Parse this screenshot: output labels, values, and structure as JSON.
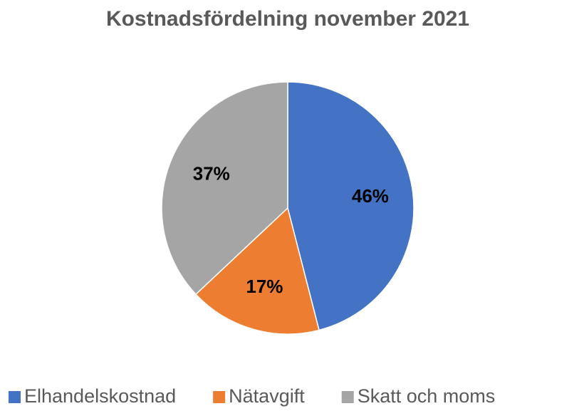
{
  "chart_data": {
    "type": "pie",
    "title": "Kostnadsfördelning november 2021",
    "categories": [
      "Elhandelskostnad",
      "Nätavgift",
      "Skatt och moms"
    ],
    "values": [
      46,
      17,
      37
    ],
    "value_labels": [
      "46%",
      "17%",
      "37%"
    ],
    "colors": [
      "#4472c4",
      "#ed7d31",
      "#a5a5a5"
    ],
    "legend": "bottom"
  }
}
